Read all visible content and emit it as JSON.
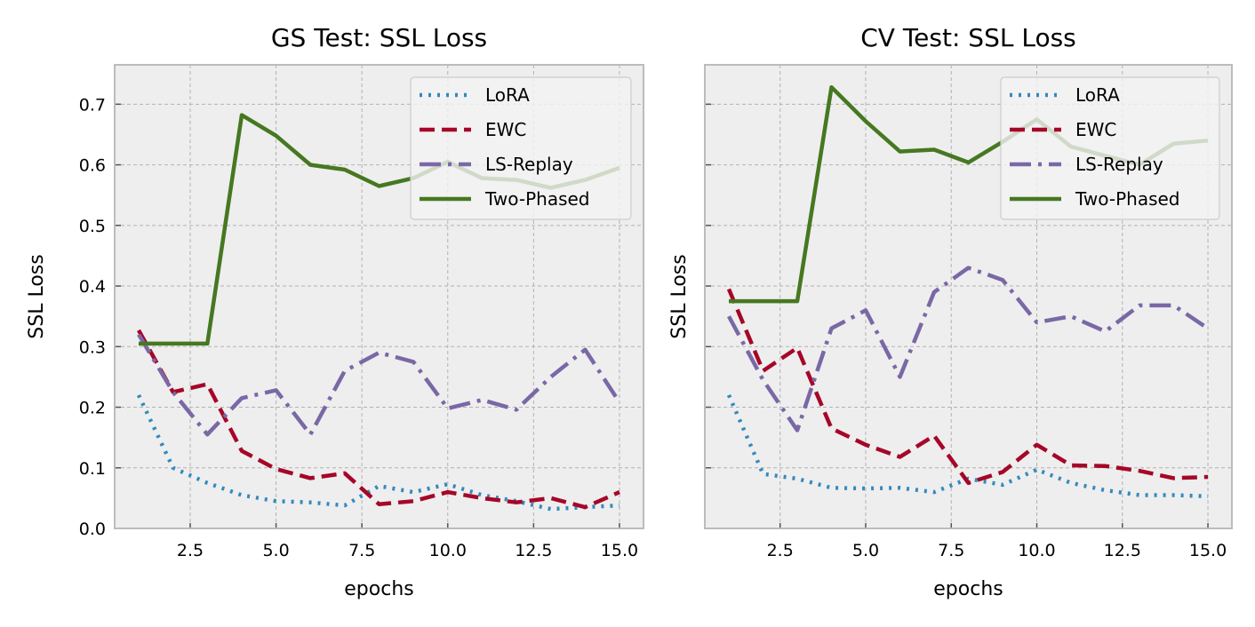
{
  "charts": [
    {
      "type": "line",
      "title": "GS Test: SSL Loss",
      "xlabel": "epochs",
      "ylabel": "SSL Loss",
      "x": [
        1,
        2,
        3,
        4,
        5,
        6,
        7,
        8,
        9,
        10,
        11,
        12,
        13,
        14,
        15
      ],
      "xlim": [
        0.3,
        15.7
      ],
      "ylim": [
        0,
        0.765
      ],
      "xticks": [
        "2.5",
        "5.0",
        "7.5",
        "10.0",
        "12.5",
        "15.0"
      ],
      "yticks": [
        "0.0",
        "0.1",
        "0.2",
        "0.3",
        "0.4",
        "0.5",
        "0.6",
        "0.7"
      ],
      "show_ytick_labels": true,
      "grid": true,
      "legend": "top-right",
      "series": [
        {
          "name": "LoRA",
          "values": [
            0.22,
            0.1,
            0.075,
            0.055,
            0.045,
            0.043,
            0.038,
            0.07,
            0.06,
            0.073,
            0.055,
            0.045,
            0.032,
            0.035,
            0.038
          ]
        },
        {
          "name": "EWC",
          "values": [
            0.327,
            0.225,
            0.238,
            0.128,
            0.098,
            0.083,
            0.091,
            0.04,
            0.045,
            0.06,
            0.05,
            0.043,
            0.05,
            0.035,
            0.06
          ]
        },
        {
          "name": "LS-Replay",
          "values": [
            0.32,
            0.225,
            0.155,
            0.215,
            0.228,
            0.155,
            0.26,
            0.29,
            0.275,
            0.198,
            0.212,
            0.196,
            0.25,
            0.295,
            0.208
          ]
        },
        {
          "name": "Two-Phased",
          "values": [
            0.305,
            0.305,
            0.305,
            0.682,
            0.648,
            0.6,
            0.592,
            0.565,
            0.578,
            0.605,
            0.578,
            0.575,
            0.562,
            0.575,
            0.595
          ]
        }
      ]
    },
    {
      "type": "line",
      "title": "CV Test: SSL Loss",
      "xlabel": "epochs",
      "ylabel": "SSL Loss",
      "x": [
        1,
        2,
        3,
        4,
        5,
        6,
        7,
        8,
        9,
        10,
        11,
        12,
        13,
        14,
        15
      ],
      "xlim": [
        0.3,
        15.7
      ],
      "ylim": [
        0,
        0.765
      ],
      "xticks": [
        "2.5",
        "5.0",
        "7.5",
        "10.0",
        "12.5",
        "15.0"
      ],
      "yticks": [
        "0.0",
        "0.1",
        "0.2",
        "0.3",
        "0.4",
        "0.5",
        "0.6",
        "0.7"
      ],
      "show_ytick_labels": false,
      "grid": true,
      "legend": "top-right",
      "series": [
        {
          "name": "LoRA",
          "values": [
            0.22,
            0.09,
            0.082,
            0.067,
            0.066,
            0.067,
            0.06,
            0.082,
            0.072,
            0.097,
            0.075,
            0.063,
            0.055,
            0.055,
            0.053
          ]
        },
        {
          "name": "EWC",
          "values": [
            0.395,
            0.26,
            0.298,
            0.165,
            0.138,
            0.118,
            0.153,
            0.075,
            0.093,
            0.138,
            0.104,
            0.103,
            0.095,
            0.083,
            0.085
          ]
        },
        {
          "name": "LS-Replay",
          "values": [
            0.35,
            0.245,
            0.162,
            0.33,
            0.36,
            0.25,
            0.39,
            0.43,
            0.41,
            0.34,
            0.35,
            0.325,
            0.368,
            0.368,
            0.33
          ]
        },
        {
          "name": "Two-Phased",
          "values": [
            0.375,
            0.375,
            0.375,
            0.728,
            0.672,
            0.622,
            0.625,
            0.604,
            0.638,
            0.675,
            0.63,
            0.615,
            0.6,
            0.635,
            0.64
          ]
        }
      ]
    }
  ],
  "styles": {
    "LoRA": {
      "color": "#348ABD",
      "dash": "3 7"
    },
    "EWC": {
      "color": "#A60628",
      "dash": "17 8"
    },
    "LS-Replay": {
      "color": "#7A68A6",
      "dash": "24 8 4 8"
    },
    "Two-Phased": {
      "color": "#467821",
      "dash": ""
    }
  },
  "colors": {
    "panel_bg": "#EEEEEE",
    "grid": "#b2b2b2",
    "frame": "#bcbcbc"
  }
}
